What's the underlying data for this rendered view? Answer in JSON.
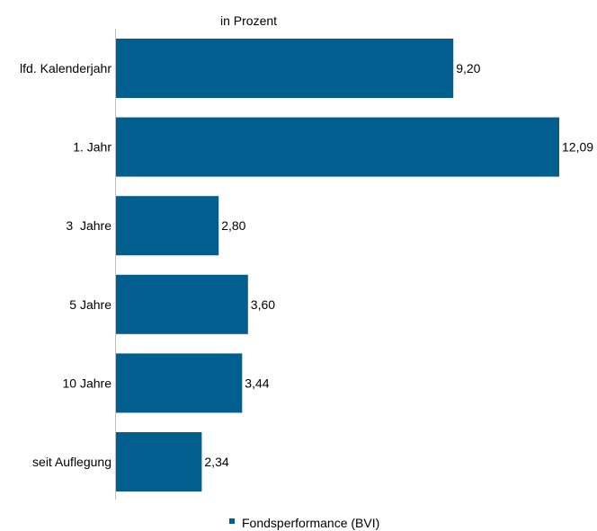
{
  "chart_data": {
    "type": "bar",
    "orientation": "horizontal",
    "unit_label": "in Prozent",
    "categories": [
      "lfd. Kalenderjahr",
      "1. Jahr",
      "3  Jahre",
      "5 Jahre",
      "10 Jahre",
      "seit Auflegung"
    ],
    "series": [
      {
        "name": "Fondsperformance (BVI)",
        "color": "#005f8e",
        "values": [
          9.2,
          12.09,
          2.8,
          3.6,
          3.44,
          2.34
        ],
        "labels": [
          "9,20",
          "12,09",
          "2,80",
          "3,60",
          "3,44",
          "2,34"
        ]
      }
    ],
    "xlim": [
      0,
      12.09
    ],
    "grid": false,
    "legend": "bottom"
  }
}
